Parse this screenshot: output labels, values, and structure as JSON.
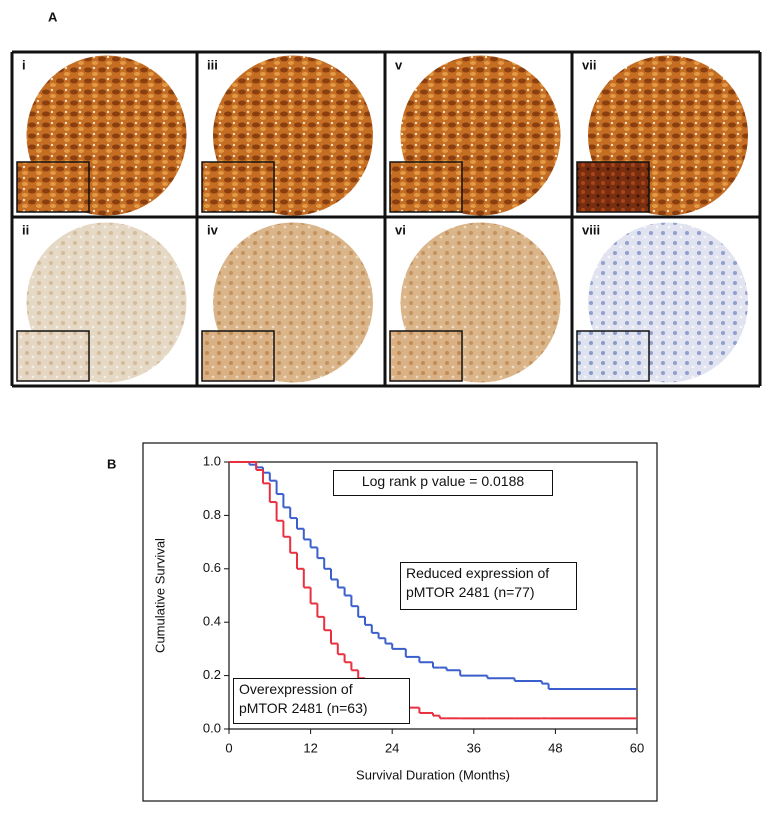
{
  "panel_labels": [
    "A",
    "B"
  ],
  "images": [
    "i",
    "iii",
    "v",
    "vii",
    "ii",
    "iv",
    "vi",
    "viii"
  ],
  "chart_data": {
    "type": "step",
    "annotation": "Log rank p value = 0.0188",
    "xlabel": "Survival Duration (Months)",
    "ylabel": "Cumulative Survival",
    "xlim": [
      0,
      60
    ],
    "xticks": [
      0,
      12,
      24,
      36,
      48,
      60
    ],
    "ylim": [
      0,
      1
    ],
    "yticks": [
      {
        "value": 0,
        "label": "0.0"
      },
      {
        "value": 0.2,
        "label": "0.2"
      },
      {
        "value": 0.4,
        "label": "0.4"
      },
      {
        "value": 0.6,
        "label": "0.6"
      },
      {
        "value": 0.8,
        "label": "0.8"
      },
      {
        "value": 1,
        "label": "1.0"
      }
    ],
    "x": [
      0,
      3,
      4,
      5,
      6,
      7,
      8,
      9,
      10,
      11,
      12,
      13,
      14,
      15,
      16,
      17,
      18,
      19,
      20,
      21,
      22,
      23,
      24,
      26,
      28,
      30,
      31,
      32,
      34,
      38,
      42,
      46,
      47,
      60
    ],
    "series": [
      {
        "name": "Reduced expression of pMTOR 2481 (n=77)",
        "color": "#3a5fcd",
        "values": [
          1,
          0.99,
          0.98,
          0.96,
          0.93,
          0.88,
          0.83,
          0.79,
          0.75,
          0.71,
          0.68,
          0.64,
          0.6,
          0.56,
          0.53,
          0.5,
          0.46,
          0.42,
          0.39,
          0.36,
          0.34,
          0.32,
          0.3,
          0.27,
          0.25,
          0.23,
          0.23,
          0.22,
          0.2,
          0.19,
          0.18,
          0.17,
          0.15,
          0.15
        ]
      },
      {
        "name": "Overexpression of pMTOR 2481 (n=63)",
        "color": "#e8303f",
        "values": [
          1,
          1,
          0.97,
          0.92,
          0.85,
          0.78,
          0.72,
          0.66,
          0.6,
          0.53,
          0.47,
          0.42,
          0.37,
          0.32,
          0.28,
          0.25,
          0.22,
          0.19,
          0.17,
          0.16,
          0.15,
          0.12,
          0.1,
          0.08,
          0.06,
          0.05,
          0.04,
          0.04,
          0.04,
          0.04,
          0.04,
          0.04,
          0.04,
          0.04
        ]
      }
    ]
  }
}
